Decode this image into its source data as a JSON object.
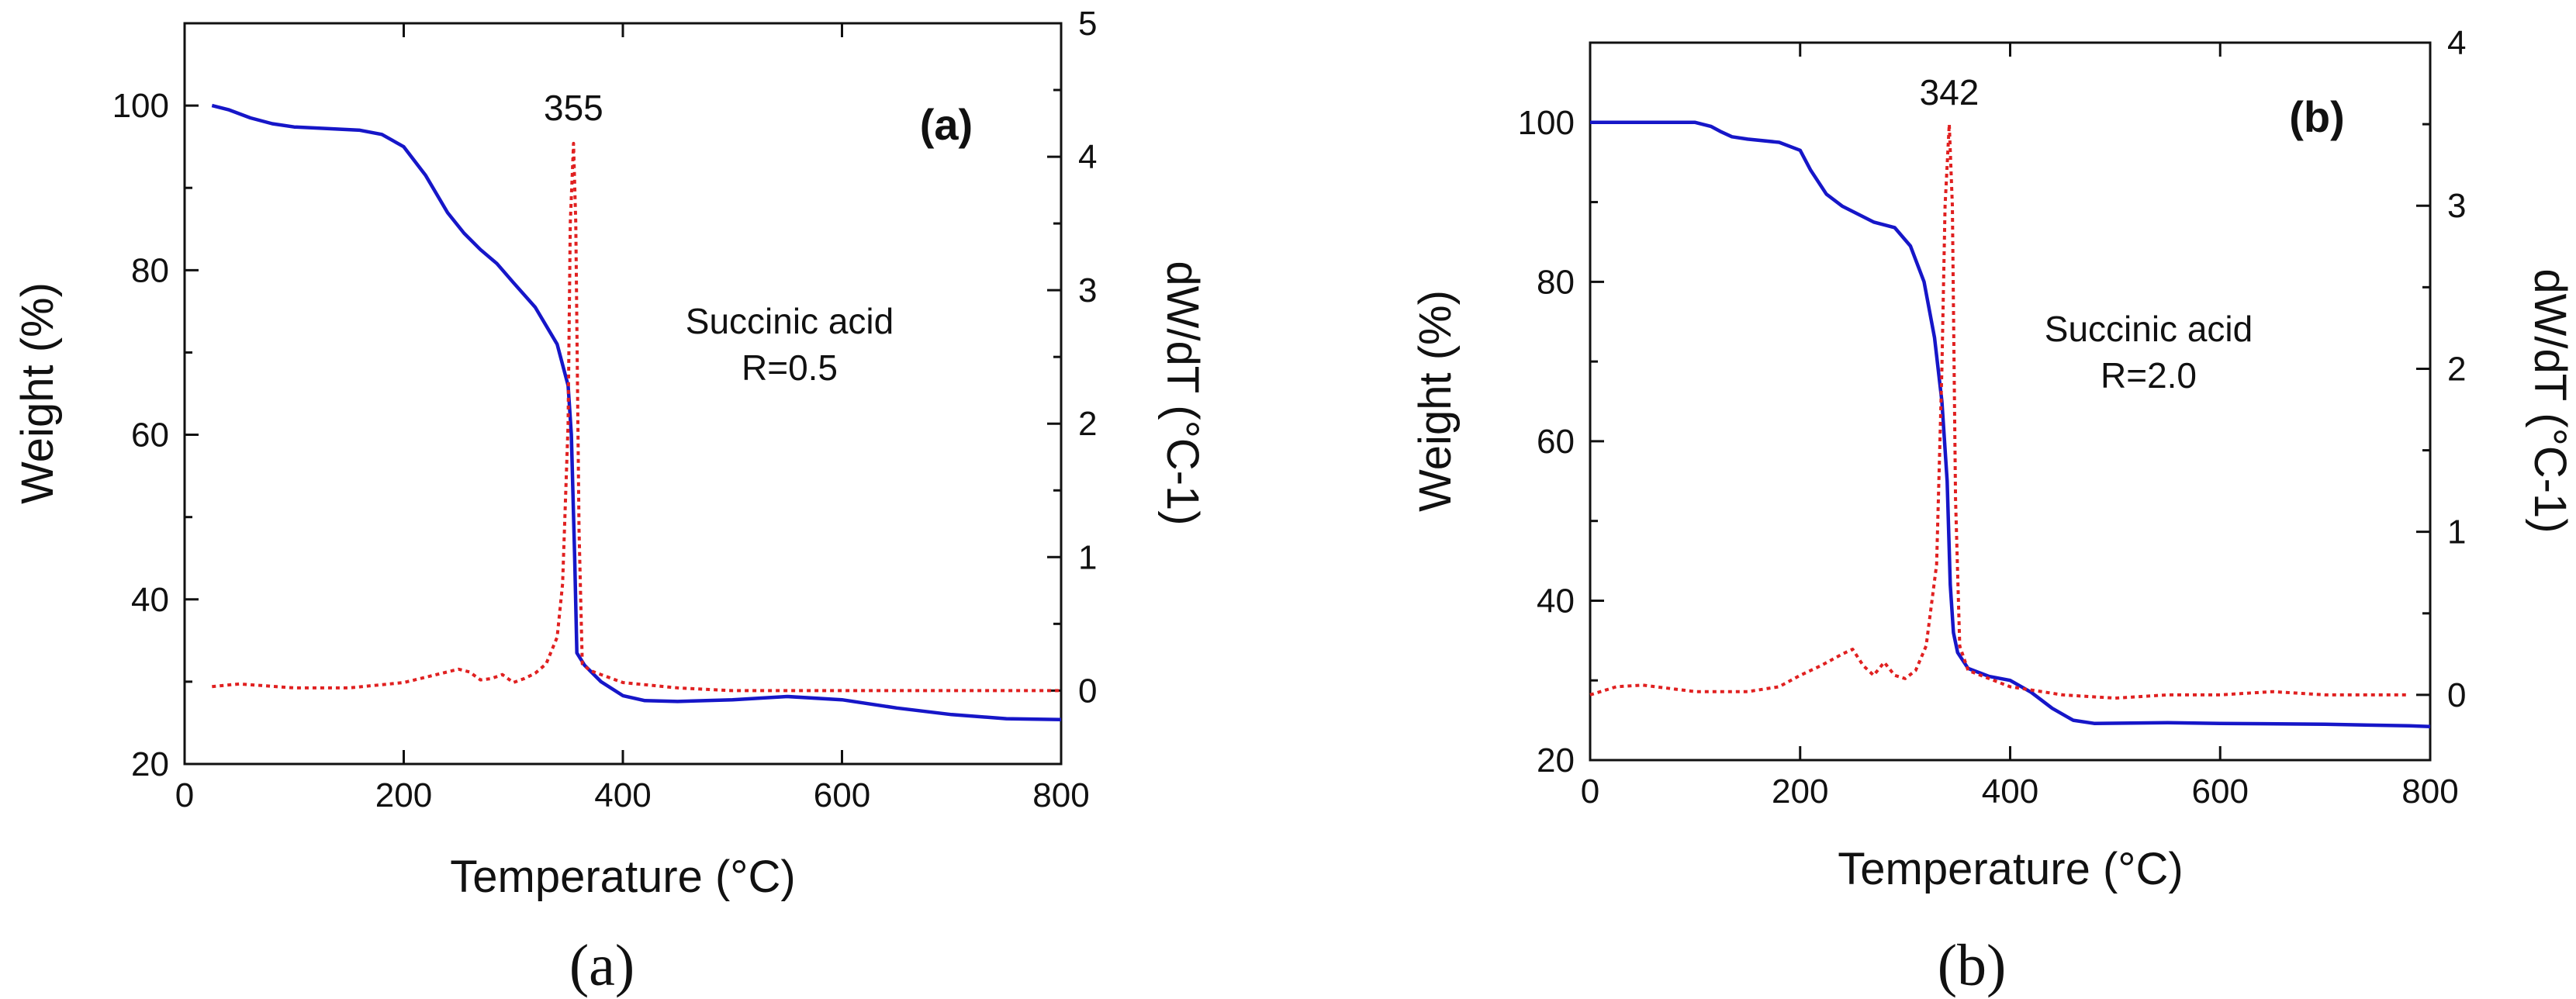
{
  "colors": {
    "weight_line": "#1616c8",
    "deriv_line": "#e02020",
    "axis": "#111111"
  },
  "chart_data": [
    {
      "type": "line",
      "panel_label": "(a)",
      "caption": "(a)",
      "annotation": "Succinic acid",
      "annotation2": "R=0.5",
      "peak_label": "355",
      "peak_x": 355,
      "xlabel": "Temperature (°C)",
      "ylabel": "Weight (%)",
      "y2label": "dW/dT (°C-1)",
      "xlim": [
        0,
        800
      ],
      "ylim": [
        20,
        110
      ],
      "y2lim": [
        -0.55,
        5
      ],
      "xticks": [
        0,
        200,
        400,
        600,
        800
      ],
      "xtick_labels": [
        "0",
        "200",
        "400",
        "600",
        "800"
      ],
      "yticks": [
        20,
        40,
        60,
        80,
        100
      ],
      "ytick_labels": [
        "20",
        "40",
        "60",
        "80",
        "100"
      ],
      "y2ticks": [
        0,
        1,
        2,
        3,
        4,
        5
      ],
      "y2tick_labels": [
        "0",
        "1",
        "2",
        "3",
        "4",
        "5"
      ],
      "series": [
        {
          "name": "Weight",
          "axis": "left",
          "style": "solid",
          "x": [
            25,
            40,
            60,
            80,
            100,
            130,
            160,
            180,
            200,
            220,
            240,
            255,
            270,
            285,
            300,
            320,
            340,
            350,
            353,
            356,
            358,
            365,
            380,
            400,
            420,
            450,
            500,
            550,
            600,
            650,
            700,
            750,
            800
          ],
          "y": [
            100,
            99.5,
            98.5,
            97.8,
            97.4,
            97.2,
            97,
            96.5,
            95,
            91.5,
            87,
            84.5,
            82.5,
            80.8,
            78.5,
            75.5,
            71,
            66,
            60,
            45,
            33.5,
            32,
            30,
            28.3,
            27.7,
            27.6,
            27.8,
            28.2,
            27.8,
            26.8,
            26,
            25.5,
            25.4
          ]
        },
        {
          "name": "dW/dT",
          "axis": "right",
          "style": "dotted",
          "x": [
            25,
            50,
            100,
            150,
            200,
            230,
            250,
            260,
            270,
            280,
            290,
            300,
            310,
            320,
            330,
            340,
            345,
            350,
            352,
            355,
            357,
            360,
            363,
            370,
            380,
            400,
            450,
            500,
            550,
            600,
            650,
            700,
            750,
            800
          ],
          "y": [
            0.03,
            0.05,
            0.02,
            0.02,
            0.06,
            0.12,
            0.16,
            0.14,
            0.08,
            0.09,
            0.12,
            0.06,
            0.09,
            0.13,
            0.2,
            0.4,
            0.8,
            2.0,
            3.5,
            4.1,
            3.5,
            1.2,
            0.2,
            0.15,
            0.12,
            0.06,
            0.02,
            0.0,
            0.0,
            0.0,
            0.0,
            0.0,
            0.0,
            0.0
          ]
        }
      ]
    },
    {
      "type": "line",
      "panel_label": "(b)",
      "caption": "(b)",
      "annotation": "Succinic acid",
      "annotation2": "R=2.0",
      "peak_label": "342",
      "peak_x": 342,
      "xlabel": "Temperature (°C)",
      "ylabel": "Weight (%)",
      "y2label": "dW/dT (°C-1)",
      "xlim": [
        0,
        800
      ],
      "ylim": [
        20,
        110
      ],
      "y2lim": [
        -0.4,
        4
      ],
      "xticks": [
        0,
        200,
        400,
        600,
        800
      ],
      "xtick_labels": [
        "0",
        "200",
        "400",
        "600",
        "800"
      ],
      "yticks": [
        20,
        40,
        60,
        80,
        100
      ],
      "ytick_labels": [
        "20",
        "40",
        "60",
        "80",
        "100"
      ],
      "y2ticks": [
        0,
        1,
        2,
        3,
        4
      ],
      "y2tick_labels": [
        "0",
        "1",
        "2",
        "3",
        "4"
      ],
      "series": [
        {
          "name": "Weight",
          "axis": "left",
          "style": "solid",
          "x": [
            0,
            50,
            100,
            115,
            125,
            135,
            150,
            180,
            200,
            210,
            225,
            240,
            255,
            270,
            290,
            305,
            318,
            328,
            335,
            340,
            343,
            346,
            350,
            360,
            380,
            400,
            420,
            440,
            460,
            480,
            550,
            600,
            700,
            780,
            800
          ],
          "y": [
            100,
            100,
            100,
            99.5,
            98.8,
            98.2,
            97.9,
            97.5,
            96.5,
            94,
            91,
            89.5,
            88.5,
            87.5,
            86.8,
            84.5,
            80,
            73,
            65,
            55,
            42,
            36,
            33.5,
            31.5,
            30.5,
            30,
            28.5,
            26.5,
            25,
            24.6,
            24.7,
            24.6,
            24.5,
            24.3,
            24.2
          ]
        },
        {
          "name": "dW/dT",
          "axis": "right",
          "style": "dotted",
          "x": [
            0,
            25,
            50,
            100,
            150,
            180,
            200,
            220,
            240,
            250,
            260,
            270,
            280,
            290,
            300,
            310,
            320,
            330,
            335,
            338,
            342,
            345,
            348,
            352,
            360,
            380,
            400,
            450,
            500,
            550,
            600,
            650,
            700,
            780
          ],
          "y": [
            0.0,
            0.05,
            0.06,
            0.02,
            0.02,
            0.05,
            0.12,
            0.18,
            0.25,
            0.28,
            0.18,
            0.12,
            0.2,
            0.12,
            0.1,
            0.15,
            0.3,
            0.8,
            2.0,
            3.0,
            3.5,
            3.0,
            1.2,
            0.3,
            0.15,
            0.1,
            0.05,
            0.0,
            -0.02,
            0.0,
            0.0,
            0.02,
            0.0,
            0.0
          ]
        }
      ]
    }
  ]
}
